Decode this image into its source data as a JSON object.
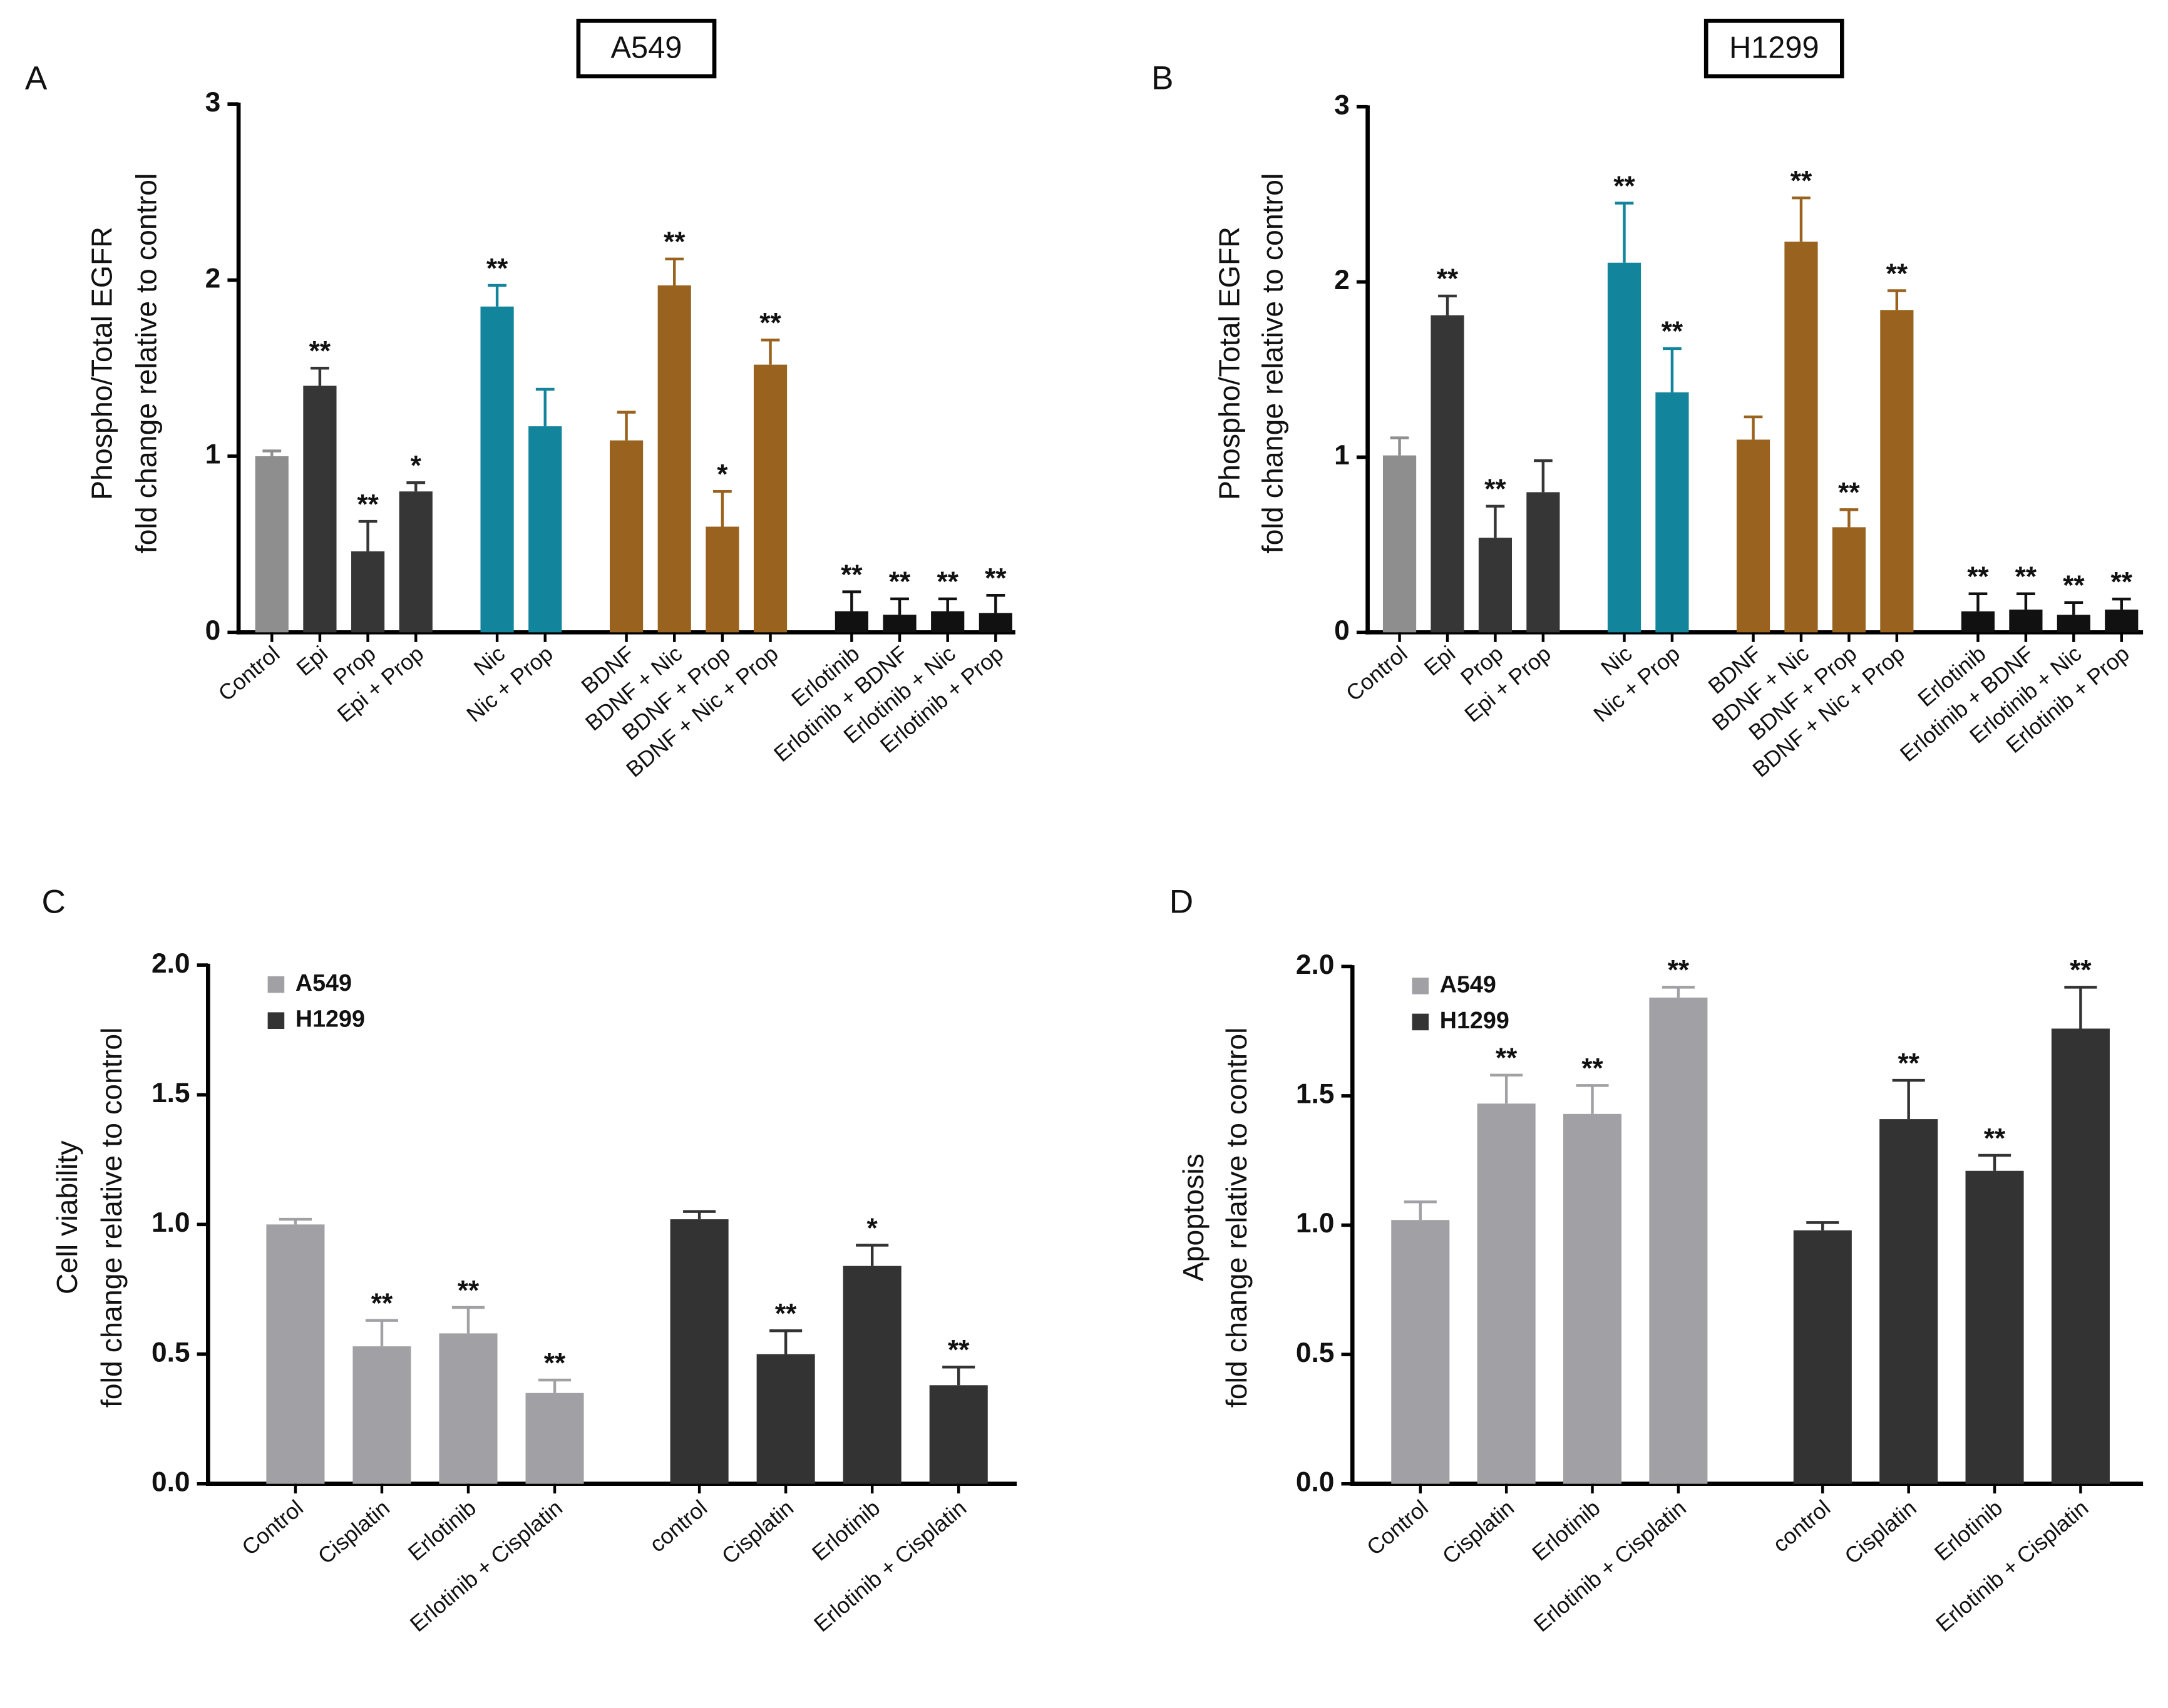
{
  "chart_data": [
    {
      "type": "bar",
      "panel": "A",
      "heading": "A549",
      "y_label": [
        "Phospho/Total EGFR",
        "fold change relative to control"
      ],
      "ylim": [
        0,
        3
      ],
      "yticks": [
        0,
        1,
        2,
        3
      ],
      "groups": [
        {
          "categories": [
            "Control",
            "Epi",
            "Prop",
            "Epi + Prop"
          ],
          "values": [
            1.0,
            1.4,
            0.46,
            0.8
          ],
          "errors": [
            0.03,
            0.1,
            0.17,
            0.05
          ],
          "annotations": [
            null,
            "**",
            "**",
            "*"
          ],
          "colors": [
            "#8e8e8e",
            "#363636",
            "#363636",
            "#363636"
          ]
        },
        {
          "categories": [
            "Nic",
            "Nic + Prop"
          ],
          "values": [
            1.85,
            1.17
          ],
          "errors": [
            0.12,
            0.21
          ],
          "annotations": [
            "**",
            null
          ],
          "colors": [
            "#12849b",
            "#12849b"
          ]
        },
        {
          "categories": [
            "BDNF",
            "BDNF + Nic",
            "BDNF + Prop",
            "BDNF + Nic + Prop"
          ],
          "values": [
            1.09,
            1.97,
            0.6,
            1.52
          ],
          "errors": [
            0.16,
            0.15,
            0.2,
            0.14
          ],
          "annotations": [
            null,
            "**",
            "*",
            "**"
          ],
          "colors": [
            "#99631f",
            "#99631f",
            "#99631f",
            "#99631f"
          ]
        },
        {
          "categories": [
            "Erlotinib",
            "Erlotinib + BDNF",
            "Erlotinib + Nic",
            "Erlotinib + Prop"
          ],
          "values": [
            0.12,
            0.1,
            0.12,
            0.11
          ],
          "errors": [
            0.11,
            0.09,
            0.07,
            0.1
          ],
          "annotations": [
            "**",
            "**",
            "**",
            "**"
          ],
          "colors": [
            "#111111",
            "#111111",
            "#111111",
            "#111111"
          ]
        }
      ]
    },
    {
      "type": "bar",
      "panel": "B",
      "heading": "H1299",
      "y_label": [
        "Phospho/Total EGFR",
        "fold change relative to control"
      ],
      "ylim": [
        0,
        3
      ],
      "yticks": [
        0,
        1,
        2,
        3
      ],
      "groups": [
        {
          "categories": [
            "Control",
            "Epi",
            "Prop",
            "Epi + Prop"
          ],
          "values": [
            1.01,
            1.81,
            0.54,
            0.8
          ],
          "errors": [
            0.1,
            0.11,
            0.18,
            0.18
          ],
          "annotations": [
            null,
            "**",
            "**",
            null
          ],
          "colors": [
            "#8e8e8e",
            "#363636",
            "#363636",
            "#363636"
          ]
        },
        {
          "categories": [
            "Nic",
            "Nic + Prop"
          ],
          "values": [
            2.11,
            1.37
          ],
          "errors": [
            0.34,
            0.25
          ],
          "annotations": [
            "**",
            "**"
          ],
          "colors": [
            "#12849b",
            "#12849b"
          ]
        },
        {
          "categories": [
            "BDNF",
            "BDNF + Nic",
            "BDNF + Prop",
            "BDNF + Nic + Prop"
          ],
          "values": [
            1.1,
            2.23,
            0.6,
            1.84
          ],
          "errors": [
            0.13,
            0.25,
            0.1,
            0.11
          ],
          "annotations": [
            null,
            "**",
            "**",
            "**"
          ],
          "colors": [
            "#99631f",
            "#99631f",
            "#99631f",
            "#99631f"
          ]
        },
        {
          "categories": [
            "Erlotinib",
            "Erlotinib + BDNF",
            "Erlotinib + Nic",
            "Erlotinib + Prop"
          ],
          "values": [
            0.12,
            0.13,
            0.1,
            0.13
          ],
          "errors": [
            0.1,
            0.09,
            0.07,
            0.06
          ],
          "annotations": [
            "**",
            "**",
            "**",
            "**"
          ],
          "colors": [
            "#111111",
            "#111111",
            "#111111",
            "#111111"
          ]
        }
      ]
    },
    {
      "type": "bar",
      "panel": "C",
      "y_label": [
        "Cell viability",
        "fold change relative to control"
      ],
      "ylim": [
        0,
        2
      ],
      "yticks": [
        {
          "value": 0,
          "label": "0.0"
        },
        0.5,
        {
          "value": 1,
          "label": "1.0"
        },
        1.5,
        {
          "value": 2,
          "label": "2.0"
        }
      ],
      "legend": "top-left",
      "series": [
        {
          "name": "A549",
          "color": "#a1a1a5",
          "categories": [
            "Control",
            "Cisplatin",
            "Erlotinib",
            "Erlotinib + Cisplatin"
          ],
          "values": [
            1.0,
            0.53,
            0.58,
            0.35
          ],
          "errors": [
            0.02,
            0.1,
            0.1,
            0.05
          ],
          "annotations": [
            null,
            "**",
            "**",
            "**"
          ]
        },
        {
          "name": "H1299",
          "color": "#333333",
          "categories": [
            "control",
            "Cisplatin",
            "Erlotinib",
            "Erlotinib + Cisplatin"
          ],
          "values": [
            1.02,
            0.5,
            0.84,
            0.38
          ],
          "errors": [
            0.03,
            0.09,
            0.08,
            0.07
          ],
          "annotations": [
            null,
            "**",
            "*",
            "**"
          ]
        }
      ]
    },
    {
      "type": "bar",
      "panel": "D",
      "y_label": [
        "Apoptosis",
        "fold change relative to control"
      ],
      "ylim": [
        0,
        2
      ],
      "yticks": [
        {
          "value": 0,
          "label": "0.0"
        },
        0.5,
        {
          "value": 1,
          "label": "1.0"
        },
        1.5,
        {
          "value": 2,
          "label": "2.0"
        }
      ],
      "legend": "top-left",
      "series": [
        {
          "name": "A549",
          "color": "#a1a1a5",
          "categories": [
            "Control",
            "Cisplatin",
            "Erlotinib",
            "Erlotinib + Cisplatin"
          ],
          "values": [
            1.02,
            1.47,
            1.43,
            1.88
          ],
          "errors": [
            0.07,
            0.11,
            0.11,
            0.04
          ],
          "annotations": [
            null,
            "**",
            "**",
            "**"
          ]
        },
        {
          "name": "H1299",
          "color": "#333333",
          "categories": [
            "control",
            "Cisplatin",
            "Erlotinib",
            "Erlotinib + Cisplatin"
          ],
          "values": [
            0.98,
            1.41,
            1.21,
            1.76
          ],
          "errors": [
            0.03,
            0.15,
            0.06,
            0.16
          ],
          "annotations": [
            null,
            "**",
            "**",
            "**"
          ]
        }
      ]
    }
  ]
}
